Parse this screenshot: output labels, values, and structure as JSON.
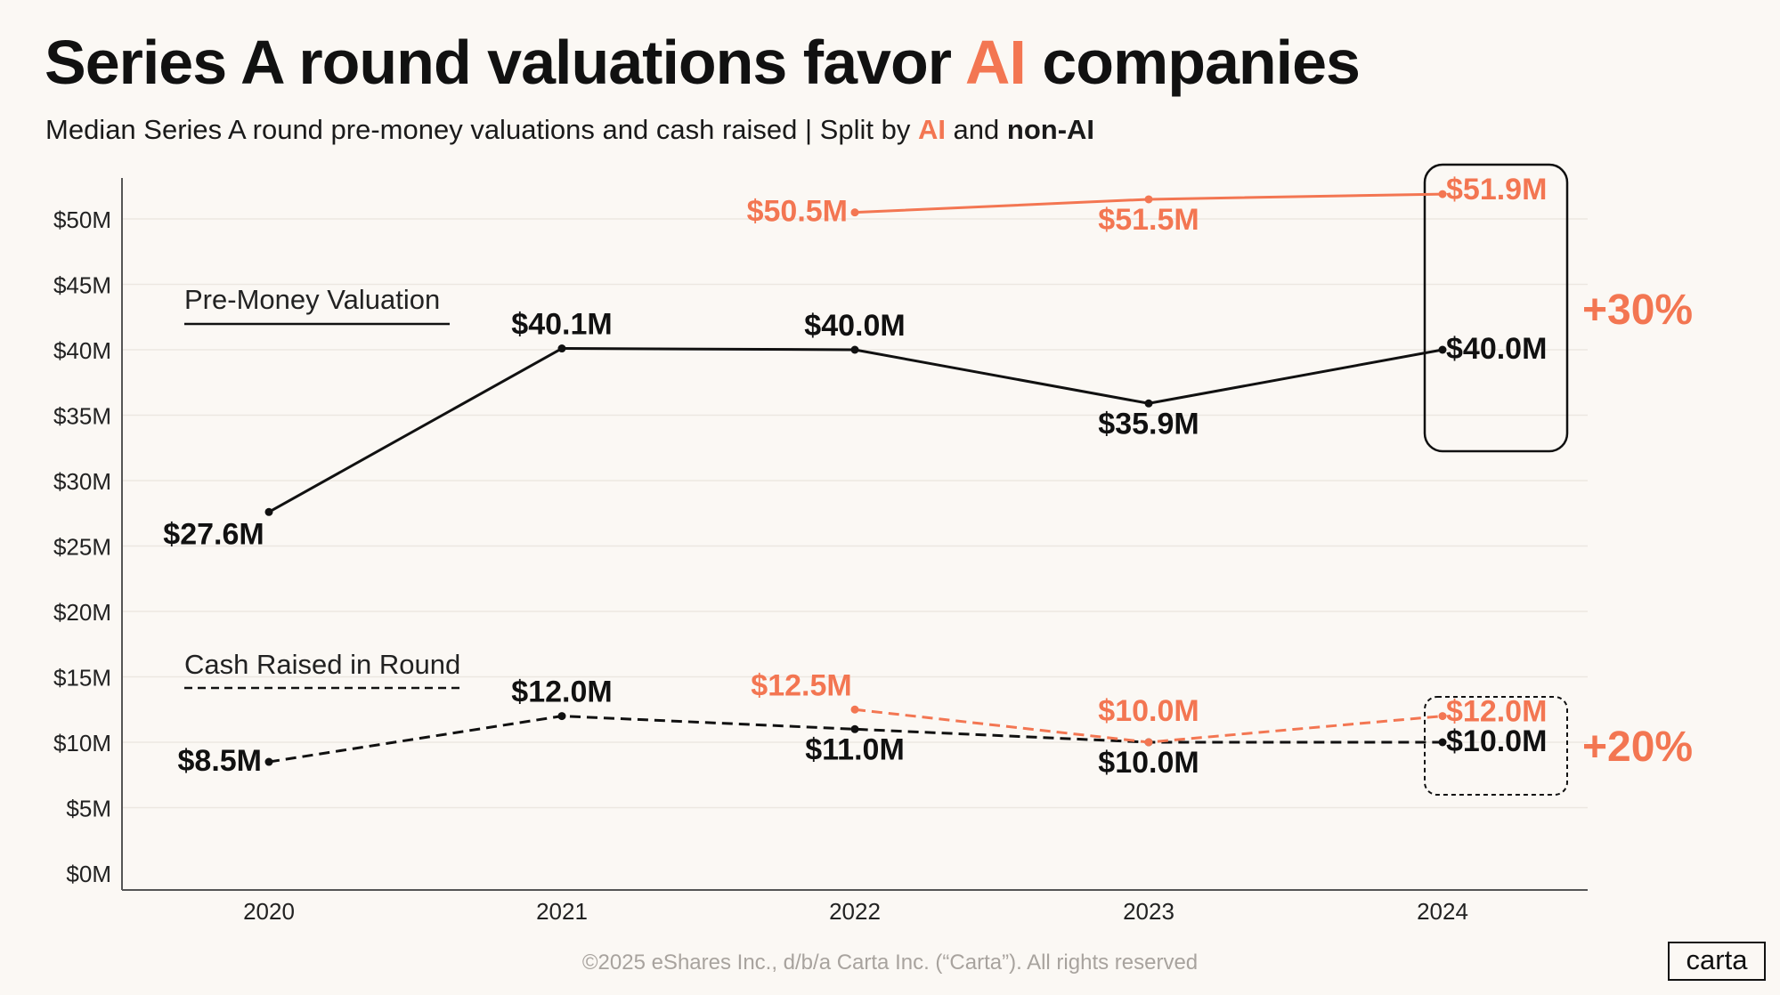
{
  "title": {
    "prefix": "Series A round valuations favor ",
    "accent": "AI",
    "suffix": " companies"
  },
  "subtitle": {
    "prefix": "Median Series A round pre-money valuations and cash raised | Split by ",
    "ai": "AI",
    "middle": " and ",
    "non_ai": "non-AI"
  },
  "colors": {
    "ai": "#f37652",
    "non_ai": "#111111",
    "grid": "#ece7e1",
    "axis": "#555555",
    "background": "#fbf8f4"
  },
  "chart_data": {
    "type": "line",
    "title": "Series A round valuations favor AI companies",
    "x": [
      "2020",
      "2021",
      "2022",
      "2023",
      "2024"
    ],
    "ylim": [
      0,
      54
    ],
    "yticks": [
      0,
      5,
      10,
      15,
      20,
      25,
      30,
      35,
      40,
      45,
      50
    ],
    "ytick_labels": [
      "$0M",
      "$5M",
      "$10M",
      "$15M",
      "$20M",
      "$25M",
      "$30M",
      "$35M",
      "$40M",
      "$45M",
      "$50M"
    ],
    "legend_labels": {
      "valuation": "Pre-Money Valuation",
      "cash": "Cash Raised in Round"
    },
    "series": [
      {
        "name": "Pre-Money Valuation (non-AI)",
        "group": "non_ai",
        "style": "solid",
        "values": [
          27.6,
          40.1,
          40.0,
          35.9,
          40.0
        ],
        "labels": [
          "$27.6M",
          "$40.1M",
          "$40.0M",
          "$35.9M",
          "$40.0M"
        ]
      },
      {
        "name": "Pre-Money Valuation (AI)",
        "group": "ai",
        "style": "solid",
        "values": [
          null,
          null,
          50.5,
          51.5,
          51.9
        ],
        "labels": [
          null,
          null,
          "$50.5M",
          "$51.5M",
          "$51.9M"
        ]
      },
      {
        "name": "Cash Raised in Round (non-AI)",
        "group": "non_ai",
        "style": "dashed",
        "values": [
          8.5,
          12.0,
          11.0,
          10.0,
          10.0
        ],
        "labels": [
          "$8.5M",
          "$12.0M",
          "$11.0M",
          "$10.0M",
          "$10.0M"
        ]
      },
      {
        "name": "Cash Raised in Round (AI)",
        "group": "ai",
        "style": "dashed",
        "values": [
          null,
          null,
          12.5,
          10.0,
          12.0
        ],
        "labels": [
          null,
          null,
          "$12.5M",
          "$10.0M",
          "$12.0M"
        ]
      }
    ],
    "annotations": [
      {
        "text": "+30%",
        "refers_to": "Pre-Money Valuation 2024 AI vs non-AI",
        "box_style": "solid"
      },
      {
        "text": "+20%",
        "refers_to": "Cash Raised in Round 2024 AI vs non-AI",
        "box_style": "dashed"
      }
    ]
  },
  "footer": "©2025 eShares Inc., d/b/a Carta Inc. (“Carta”). All rights reserved",
  "logo": "carta"
}
